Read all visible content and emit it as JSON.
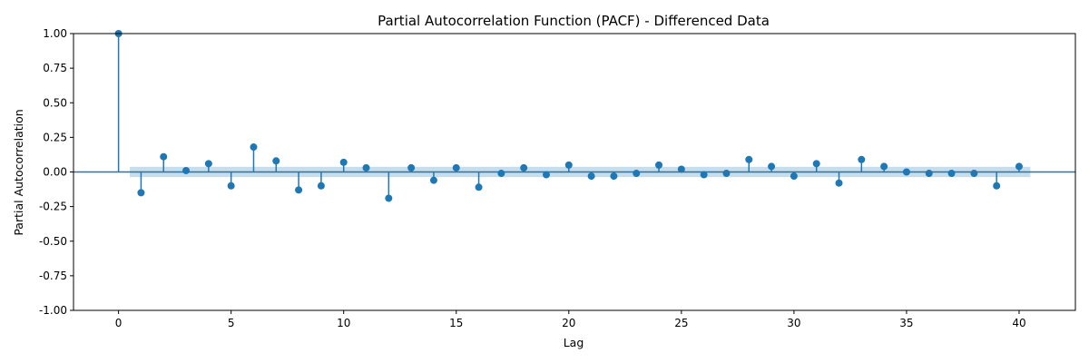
{
  "chart_data": {
    "type": "scatter",
    "style": "stem",
    "title": "Partial Autocorrelation Function (PACF) - Differenced Data",
    "xlabel": "Lag",
    "ylabel": "Partial Autocorrelation",
    "xlim": [
      -2,
      42.5
    ],
    "ylim": [
      -1.0,
      1.0
    ],
    "x_ticks": [
      0,
      5,
      10,
      15,
      20,
      25,
      30,
      35,
      40
    ],
    "y_ticks": [
      -1.0,
      -0.75,
      -0.5,
      -0.25,
      0.0,
      0.25,
      0.5,
      0.75,
      1.0
    ],
    "x_tick_labels": [
      "0",
      "5",
      "10",
      "15",
      "20",
      "25",
      "30",
      "35",
      "40"
    ],
    "y_tick_labels": [
      "-1.00",
      "-0.75",
      "-0.50",
      "-0.25",
      "0.00",
      "0.25",
      "0.50",
      "0.75",
      "1.00"
    ],
    "grid": false,
    "lags": [
      0,
      1,
      2,
      3,
      4,
      5,
      6,
      7,
      8,
      9,
      10,
      11,
      12,
      13,
      14,
      15,
      16,
      17,
      18,
      19,
      20,
      21,
      22,
      23,
      24,
      25,
      26,
      27,
      28,
      29,
      30,
      31,
      32,
      33,
      34,
      35,
      36,
      37,
      38,
      39,
      40
    ],
    "values": [
      1.0,
      -0.15,
      0.11,
      0.01,
      0.06,
      -0.1,
      0.18,
      0.08,
      -0.13,
      -0.1,
      0.07,
      0.03,
      -0.19,
      0.03,
      -0.06,
      0.03,
      -0.11,
      -0.01,
      0.03,
      -0.02,
      0.05,
      -0.03,
      -0.03,
      -0.01,
      0.05,
      0.02,
      -0.02,
      -0.01,
      0.09,
      0.04,
      -0.03,
      0.06,
      -0.08,
      0.09,
      0.04,
      0.0,
      -0.01,
      -0.01,
      -0.01,
      -0.1,
      0.04
    ],
    "confidence_band": {
      "x_range": [
        0.5,
        40.5
      ],
      "lower": -0.037,
      "upper": 0.037
    },
    "colors": {
      "stem": "#1f77b4",
      "band": "#1f77b4",
      "band_opacity": 0.25,
      "zero_line": "#1f77b4",
      "axes": "#000000"
    }
  }
}
